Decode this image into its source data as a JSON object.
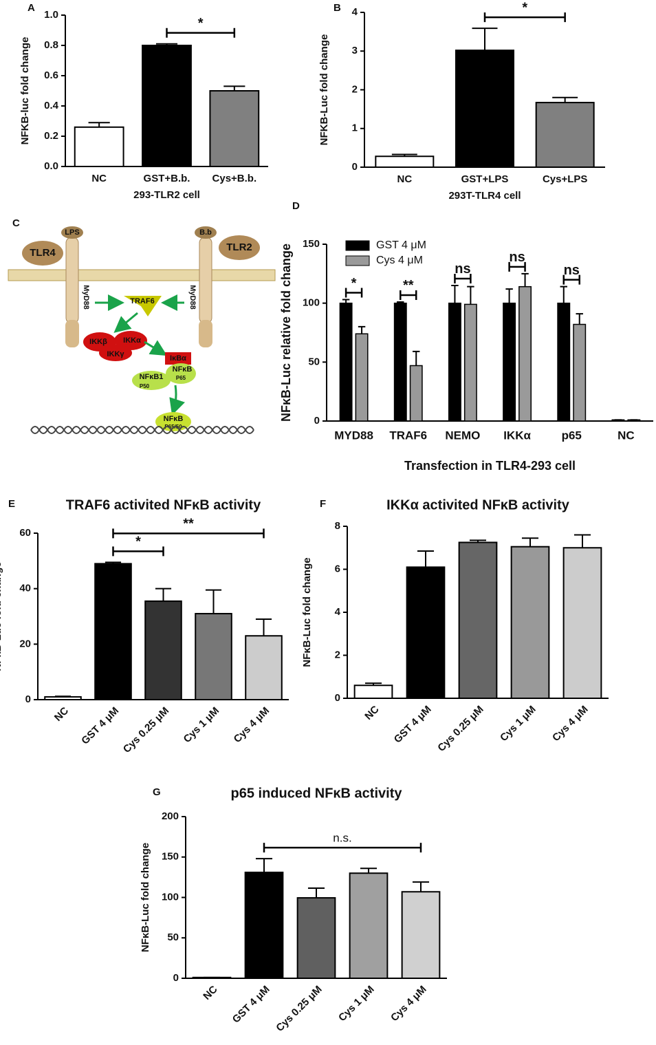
{
  "chart_data": [
    {
      "panel": "A",
      "type": "bar",
      "xlabel": "293-TLR2 cell",
      "ylabel": "NFKB-luc fold change",
      "categories": [
        "NC",
        "GST+B.b.",
        "Cys+B.b."
      ],
      "values": [
        0.26,
        0.8,
        0.5
      ],
      "errors": [
        0.03,
        0.01,
        0.03
      ],
      "colors": [
        "#ffffff",
        "#000000",
        "#808080"
      ],
      "ylim": [
        0,
        1
      ],
      "yticks": [
        {
          "value": 0,
          "label": "0.0"
        },
        0.2,
        0.4,
        0.6,
        0.8,
        {
          "value": 1,
          "label": "1.0"
        }
      ],
      "annotations": [
        {
          "text": "*",
          "between": [
            "GST+B.b.",
            "Cys+B.b."
          ]
        }
      ]
    },
    {
      "panel": "B",
      "type": "bar",
      "xlabel": "293T-TLR4 cell",
      "ylabel": "NFKB-Luc fold change",
      "categories": [
        "NC",
        "GST+LPS",
        "Cys+LPS"
      ],
      "values": [
        0.28,
        3.02,
        1.67
      ],
      "errors": [
        0.05,
        0.57,
        0.13
      ],
      "colors": [
        "#ffffff",
        "#000000",
        "#808080"
      ],
      "ylim": [
        0,
        4
      ],
      "yticks": [
        0,
        1,
        2,
        3,
        4
      ],
      "annotations": [
        {
          "text": "*",
          "between": [
            "GST+LPS",
            "Cys+LPS"
          ]
        }
      ]
    },
    {
      "panel": "D",
      "type": "grouped_bar",
      "xlabel": "Transfection in TLR4-293 cell",
      "ylabel": "NFκB-Luc relative fold change",
      "categories": [
        "MYD88",
        "TRAF6",
        "NEMO",
        "IKKα",
        "p65",
        "NC"
      ],
      "series": [
        {
          "name": "GST 4 μM",
          "color": "#000000",
          "values": [
            100,
            100,
            100,
            100,
            100,
            1
          ],
          "errors": [
            3,
            1,
            15,
            12,
            14,
            0
          ]
        },
        {
          "name": "Cys 4 μM",
          "color": "#9a9a9a",
          "values": [
            74,
            47,
            99,
            114,
            82,
            1
          ],
          "errors": [
            6,
            12,
            15,
            11,
            9,
            0
          ]
        }
      ],
      "ylim": [
        0,
        150
      ],
      "yticks": [
        0,
        50,
        100,
        150
      ],
      "legend": "top-left",
      "annotations": [
        {
          "text": "*",
          "category": "MYD88"
        },
        {
          "text": "**",
          "category": "TRAF6"
        },
        {
          "text": "ns",
          "category": "NEMO"
        },
        {
          "text": "ns",
          "category": "IKKα"
        },
        {
          "text": "ns",
          "category": "p65"
        }
      ]
    },
    {
      "panel": "E",
      "type": "bar",
      "title": "TRAF6 activited NFκB activity",
      "ylabel": "NFκB-Luc fold change",
      "categories": [
        "NC",
        "GST 4 μM",
        "Cys 0.25 μM",
        "Cys 1 μM",
        "Cys 4 μM"
      ],
      "values": [
        1,
        49,
        35.5,
        31,
        23
      ],
      "errors": [
        0.2,
        0.5,
        4.5,
        8.5,
        6
      ],
      "colors": [
        "#ffffff",
        "#000000",
        "#333333",
        "#777777",
        "#cccccc"
      ],
      "ylim": [
        0,
        60
      ],
      "yticks": [
        0,
        20,
        40,
        60
      ],
      "annotations": [
        {
          "text": "*",
          "between": [
            "GST 4 μM",
            "Cys 0.25 μM"
          ]
        },
        {
          "text": "**",
          "between": [
            "GST 4 μM",
            "Cys 4 μM"
          ]
        }
      ]
    },
    {
      "panel": "F",
      "type": "bar",
      "title": "IKKα activited NFκB activity",
      "ylabel": "NFκB-Luc fold change",
      "categories": [
        "NC",
        "GST 4 μM",
        "Cys 0.25 μM",
        "Cys 1 μM",
        "Cys 4 μM"
      ],
      "values": [
        0.6,
        6.1,
        7.25,
        7.05,
        7.0
      ],
      "errors": [
        0.1,
        0.75,
        0.1,
        0.4,
        0.6
      ],
      "colors": [
        "#ffffff",
        "#000000",
        "#666666",
        "#999999",
        "#cccccc"
      ],
      "ylim": [
        0,
        8
      ],
      "yticks": [
        0,
        2,
        4,
        6,
        8
      ],
      "annotations": []
    },
    {
      "panel": "G",
      "type": "bar",
      "title": "p65 induced NFκB activity",
      "ylabel": "NFκB-Luc fold change",
      "categories": [
        "NC",
        "GST 4 μM",
        "Cys 0.25 μM",
        "Cys 1 μM",
        "Cys 4 μM"
      ],
      "values": [
        1,
        131,
        99.5,
        130,
        107
      ],
      "errors": [
        0,
        17,
        12,
        6,
        12
      ],
      "colors": [
        "#ffffff",
        "#000000",
        "#606060",
        "#a0a0a0",
        "#d0d0d0"
      ],
      "ylim": [
        0,
        200
      ],
      "yticks": [
        0,
        50,
        100,
        150,
        200
      ],
      "annotations": [
        {
          "text": "n.s.",
          "between": [
            "GST 4 μM",
            "Cys 4 μM"
          ]
        }
      ]
    }
  ],
  "diagram": {
    "panel": "C",
    "labels": {
      "lps": "LPS",
      "tlr4": "TLR4",
      "bb": "B.b",
      "tlr2": "TLR2",
      "myd88_left": "MyD88",
      "myd88_right": "MyD88",
      "traf6": "TRAF6",
      "ikkb": "IKKβ",
      "ikka": "IKKα",
      "ikkg": "IKKγ",
      "ikba": "IκBα",
      "nfkb1": "NFκB1",
      "p50": "P50",
      "nfkb": "NFκB",
      "p65": "P65",
      "nfkb_nuc": "NFκB",
      "p6550": "P65/50"
    }
  }
}
